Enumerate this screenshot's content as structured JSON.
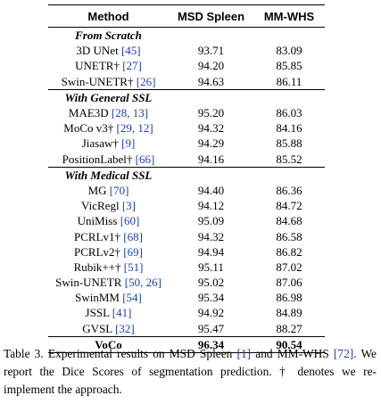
{
  "table": {
    "headers": [
      "Method",
      "MSD Spleen",
      "MM-WHS"
    ],
    "groups": [
      {
        "title": "From Scratch",
        "rows": [
          {
            "method": "3D UNet",
            "ref": "[45]",
            "spleen": "93.71",
            "mmwhs": "83.09"
          },
          {
            "method": "UNETR†",
            "ref": "[27]",
            "spleen": "94.20",
            "mmwhs": "85.85"
          },
          {
            "method": "Swin-UNETR†",
            "ref": "[26]",
            "spleen": "94.63",
            "mmwhs": "86.11"
          }
        ]
      },
      {
        "title": "With General SSL",
        "rows": [
          {
            "method": "MAE3D",
            "ref": "[28, 13]",
            "spleen": "95.20",
            "mmwhs": "86.03"
          },
          {
            "method": "MoCo v3†",
            "ref": "[29, 12]",
            "spleen": "94.32",
            "mmwhs": "84.16"
          },
          {
            "method": "Jiasaw†",
            "ref": "[9]",
            "spleen": "94.29",
            "mmwhs": "85.88"
          },
          {
            "method": "PositionLabel†",
            "ref": "[66]",
            "spleen": "94.16",
            "mmwhs": "85.52"
          }
        ]
      },
      {
        "title": "With Medical SSL",
        "rows": [
          {
            "method": "MG",
            "ref": "[70]",
            "spleen": "94.40",
            "mmwhs": "86.36"
          },
          {
            "method": "VicRegl",
            "ref": "[3]",
            "spleen": "94.12",
            "mmwhs": "84.72"
          },
          {
            "method": "UniMiss",
            "ref": "[60]",
            "spleen": "95.09",
            "mmwhs": "84.68"
          },
          {
            "method": "PCRLv1†",
            "ref": "[68]",
            "spleen": "94.32",
            "mmwhs": "86.58"
          },
          {
            "method": "PCRLv2†",
            "ref": "[69]",
            "spleen": "94.94",
            "mmwhs": "86.82"
          },
          {
            "method": "Rubik++†",
            "ref": "[51]",
            "spleen": "95.11",
            "mmwhs": "87.02"
          },
          {
            "method": "Swin-UNETR",
            "ref": "[50, 26]",
            "spleen": "95.02",
            "mmwhs": "87.06"
          },
          {
            "method": "SwinMM",
            "ref": "[54]",
            "spleen": "95.34",
            "mmwhs": "86.98"
          },
          {
            "method": "JSSL",
            "ref": "[41]",
            "spleen": "94.92",
            "mmwhs": "84.89"
          },
          {
            "method": "GVSL",
            "ref": "[32]",
            "spleen": "95.47",
            "mmwhs": "88.27"
          }
        ]
      }
    ],
    "final_row": {
      "method": "VoCo",
      "spleen": "96.34",
      "mmwhs": "90.54"
    }
  },
  "caption": {
    "part1": "Table 3. Experimental results on MSD Spleen ",
    "ref1": "[1]",
    "part2": " and MM-WHS ",
    "ref2": "[72]",
    "part3": ". We report the Dice Scores of segmentation prediction. † denotes we re-implement the approach."
  }
}
